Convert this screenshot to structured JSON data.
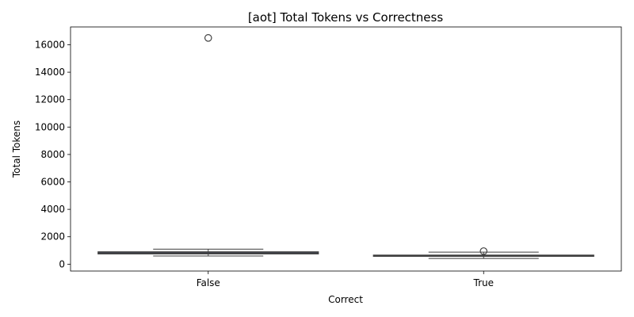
{
  "chart_data": {
    "type": "box",
    "title": "[aot] Total Tokens vs Correctness",
    "xlabel": "Correct",
    "ylabel": "Total Tokens",
    "categories": [
      "False",
      "True"
    ],
    "ylim": [
      -500,
      17300
    ],
    "yticks": [
      0,
      2000,
      4000,
      6000,
      8000,
      10000,
      12000,
      14000,
      16000
    ],
    "grid": false,
    "box_color": "#4c72b0",
    "line_color": "#3f3f3f",
    "boxes": [
      {
        "category": "False",
        "whisker_low": 600,
        "q1": 750,
        "median": 820,
        "q3": 900,
        "whisker_high": 1100,
        "outliers": [
          16500
        ]
      },
      {
        "category": "True",
        "whisker_low": 420,
        "q1": 580,
        "median": 620,
        "q3": 660,
        "whisker_high": 880,
        "outliers": [
          950
        ]
      }
    ]
  }
}
